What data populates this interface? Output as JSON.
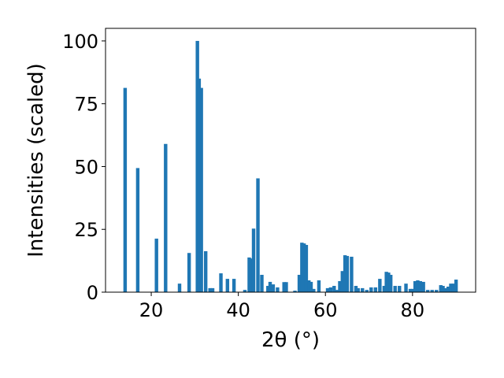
{
  "chart_data": {
    "type": "bar",
    "title": "",
    "xlabel": "2θ (°)",
    "ylabel": "Intensities (scaled)",
    "xlim": [
      9.5,
      94.5
    ],
    "ylim": [
      0,
      105
    ],
    "xticks": [
      20,
      40,
      60,
      80
    ],
    "yticks": [
      0,
      25,
      50,
      75,
      100
    ],
    "bar_width": 0.8,
    "color": "#1f77b4",
    "grid": false,
    "x": [
      14.0,
      16.9,
      21.2,
      23.3,
      26.5,
      28.7,
      30.6,
      31.0,
      31.5,
      32.5,
      33.5,
      34.1,
      36.0,
      37.5,
      39.0,
      41.5,
      42.5,
      42.9,
      43.5,
      44.5,
      45.4,
      46.8,
      47.3,
      48.0,
      49.0,
      50.5,
      51.0,
      53.0,
      54.0,
      54.6,
      55.1,
      55.6,
      56.2,
      56.7,
      57.3,
      58.5,
      60.5,
      61.2,
      62.0,
      62.7,
      63.3,
      63.9,
      64.5,
      65.0,
      66.0,
      67.0,
      67.5,
      68.5,
      69.5,
      70.5,
      71.5,
      72.5,
      73.5,
      74.0,
      74.5,
      75.0,
      76.0,
      77.0,
      78.5,
      79.5,
      80.0,
      80.6,
      81.2,
      81.8,
      82.5,
      83.5,
      84.5,
      85.5,
      86.5,
      87.0,
      87.6,
      88.2,
      88.8,
      89.4,
      90.0
    ],
    "values": [
      81.3,
      49.4,
      21.3,
      59.0,
      3.4,
      15.6,
      100,
      85.0,
      81.3,
      16.3,
      1.6,
      1.6,
      7.5,
      5.3,
      5.3,
      0.9,
      13.8,
      13.4,
      25.3,
      45.3,
      6.9,
      2.5,
      4.1,
      3.1,
      1.9,
      4.0,
      4.0,
      0.6,
      6.9,
      19.7,
      19.4,
      18.8,
      4.7,
      4.1,
      1.3,
      4.7,
      1.6,
      1.9,
      2.5,
      0.9,
      4.4,
      8.4,
      14.7,
      14.4,
      14.1,
      2.5,
      1.6,
      1.6,
      0.9,
      1.9,
      1.9,
      5.3,
      2.5,
      8.1,
      7.8,
      6.9,
      2.5,
      2.5,
      3.4,
      1.3,
      1.3,
      4.4,
      4.7,
      4.4,
      4.1,
      0.9,
      0.9,
      0.9,
      2.8,
      2.5,
      1.6,
      2.2,
      3.4,
      3.4,
      5.0
    ]
  }
}
